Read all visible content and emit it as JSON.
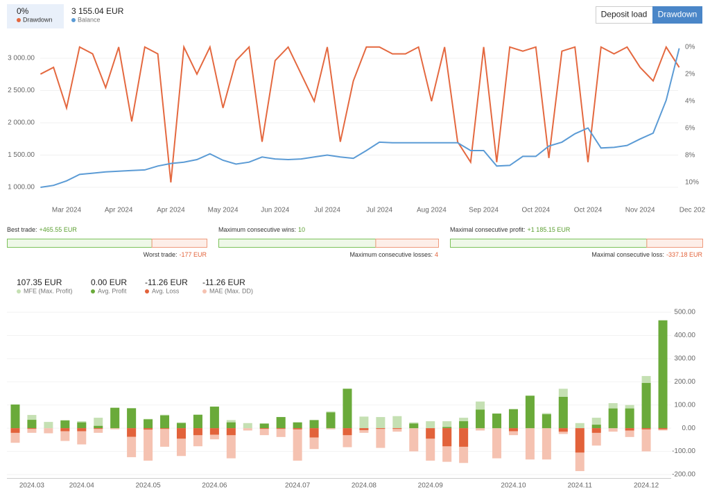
{
  "header": {
    "drawdown_value": "0%",
    "balance_value": "3 155.04 EUR"
  },
  "buttons": [
    "Deposit load",
    "Drawdown"
  ],
  "stats": [
    [
      {
        "label": "Best trade:",
        "value": 465.55,
        "value_label": "+465.55 EUR"
      },
      {
        "label": "Worst trade:",
        "value": -177,
        "value_label": "-177 EUR"
      }
    ],
    [
      {
        "label": "Maximum consecutive wins:",
        "value": 10
      },
      {
        "label": "Maximum consecutive losses:",
        "value": 4
      }
    ],
    [
      {
        "label": "Maximal consecutive profit:",
        "value": 1185.15,
        "value_label": "+1 185.15 EUR"
      },
      {
        "label": "Maximal consecutive loss:",
        "value": -337.18,
        "value_label": "-337.18 EUR"
      }
    ]
  ],
  "chart_data": [
    {
      "type": "line",
      "categories": [
        null,
        null,
        "Mar 2024",
        null,
        null,
        null,
        "Apr 2024",
        null,
        null,
        null,
        "Apr 2024",
        null,
        null,
        null,
        "May 2024",
        null,
        null,
        null,
        "Jun 2024",
        null,
        null,
        null,
        "Jul 2024",
        null,
        null,
        null,
        "Jul 2024",
        null,
        null,
        null,
        "Aug 2024",
        null,
        null,
        null,
        "Sep 2024",
        null,
        null,
        null,
        "Oct 2024",
        null,
        null,
        null,
        "Oct 2024",
        null,
        null,
        null,
        "Nov 2024",
        null,
        null,
        null,
        "Dec 202"
      ],
      "series": [
        {
          "name": "Drawdown",
          "color": "#e4683f",
          "axis": "y2",
          "values": [
            2.0,
            1.5,
            4.5,
            0,
            0.5,
            3.0,
            0,
            5.5,
            0,
            0.5,
            10,
            0,
            2,
            0,
            4.5,
            1,
            0,
            7,
            1,
            0,
            2,
            4,
            0,
            7,
            2.5,
            0,
            0,
            0.5,
            0.5,
            0,
            4,
            0,
            7,
            8.5,
            0,
            8.5,
            0,
            0.3,
            0,
            8.2,
            0.3,
            0,
            8.5,
            0,
            0.5,
            0,
            1.5,
            2.5,
            0,
            1.5,
            null
          ]
        },
        {
          "name": "Balance",
          "color": "#5b9bd5",
          "axis": "y",
          "values": [
            1000,
            1030,
            1100,
            1200,
            1220,
            1240,
            1250,
            1260,
            1270,
            1330,
            1370,
            1390,
            1430,
            1520,
            1420,
            1360,
            1390,
            1470,
            1440,
            1430,
            1440,
            1470,
            1500,
            1470,
            1450,
            1570,
            1700,
            1690,
            1690,
            1690,
            1690,
            1690,
            1690,
            1570,
            1570,
            1330,
            1340,
            1480,
            1480,
            1640,
            1700,
            1830,
            1920,
            1610,
            1620,
            1650,
            1750,
            1840,
            2350,
            3155,
            null
          ]
        }
      ],
      "ylim": [
        839,
        3258
      ],
      "yticks": [
        {
          "value": 1000,
          "label": "1 000.00"
        },
        {
          "value": 1500,
          "label": "1 500.00"
        },
        {
          "value": 2000,
          "label": "2 000.00"
        },
        {
          "value": 2500,
          "label": "2 500.00"
        },
        {
          "value": 3000,
          "label": "3 000.00"
        }
      ],
      "y2lim": [
        11.13,
        -0.4
      ],
      "y2ticks": [
        {
          "value": 0,
          "label": "0%"
        },
        {
          "value": 2,
          "label": "2%"
        },
        {
          "value": 4,
          "label": "4%"
        },
        {
          "value": 6,
          "label": "6%"
        },
        {
          "value": 8,
          "label": "8%"
        },
        {
          "value": 10,
          "label": "10%"
        }
      ],
      "grid": true
    },
    {
      "type": "bar",
      "categories": [
        null,
        "2024.03",
        null,
        null,
        "2024.04",
        null,
        null,
        null,
        "2024.05",
        null,
        null,
        null,
        "2024.06",
        null,
        null,
        null,
        null,
        "2024.07",
        null,
        null,
        null,
        "2024.08",
        null,
        null,
        null,
        "2024.09",
        null,
        null,
        null,
        null,
        "2024.10",
        null,
        null,
        null,
        "2024.11",
        null,
        null,
        null,
        "2024.12",
        null
      ],
      "series": [
        {
          "name": "MFE (Max. Profit)",
          "legend_value": "107.35 EUR",
          "color": "#c5e0b3",
          "values": [
            102,
            57,
            27,
            35,
            30,
            45,
            88,
            86,
            40,
            58,
            25,
            58,
            93,
            35,
            22,
            20,
            48,
            25,
            35,
            72,
            170,
            50,
            48,
            52,
            25,
            30,
            30,
            45,
            115,
            63,
            82,
            140,
            65,
            170,
            22,
            45,
            108,
            100,
            225,
            465
          ]
        },
        {
          "name": "Avg. Profit",
          "legend_value": "0.00 EUR",
          "color": "#6aaa3a",
          "values": [
            102,
            36,
            0,
            33,
            25,
            10,
            88,
            86,
            38,
            55,
            22,
            58,
            93,
            25,
            0,
            20,
            48,
            25,
            35,
            68,
            170,
            0,
            0,
            0,
            20,
            0,
            5,
            30,
            80,
            63,
            82,
            140,
            60,
            135,
            0,
            15,
            85,
            85,
            195,
            465
          ]
        },
        {
          "name": "Avg. Loss",
          "legend_value": "-11.26 EUR",
          "color": "#e2623a",
          "values": [
            -20,
            -3,
            0,
            -13,
            -13,
            -3,
            0,
            -37,
            -6,
            -3,
            -45,
            -30,
            -28,
            -30,
            0,
            -3,
            -3,
            -5,
            -40,
            0,
            -30,
            -8,
            -3,
            -3,
            0,
            -45,
            -78,
            -80,
            0,
            0,
            -13,
            0,
            0,
            -15,
            -105,
            -20,
            0,
            -10,
            -5,
            -5
          ]
        },
        {
          "name": "MAE (Max. DD)",
          "legend_value": "-11.26 EUR",
          "color": "#f5c2b1",
          "values": [
            -63,
            -20,
            -22,
            -55,
            -70,
            -20,
            -5,
            -125,
            -140,
            -80,
            -120,
            -78,
            -48,
            -130,
            -10,
            -30,
            -38,
            -140,
            -90,
            -5,
            -82,
            -20,
            -85,
            -15,
            -100,
            -140,
            -145,
            -150,
            -10,
            -130,
            -30,
            -135,
            -135,
            -25,
            -185,
            -75,
            -15,
            -38,
            -100,
            -10
          ]
        }
      ],
      "ylim": [
        -218,
        515
      ],
      "yticks": [
        {
          "value": 500,
          "label": "500.00"
        },
        {
          "value": 400,
          "label": "400.00"
        },
        {
          "value": 300,
          "label": "300.00"
        },
        {
          "value": 200,
          "label": "200.00"
        },
        {
          "value": 100,
          "label": "100.00"
        },
        {
          "value": 0,
          "label": "0.00"
        },
        {
          "value": -100,
          "label": "-100.00"
        },
        {
          "value": -200,
          "label": "-200.00"
        }
      ],
      "grid": true
    }
  ]
}
